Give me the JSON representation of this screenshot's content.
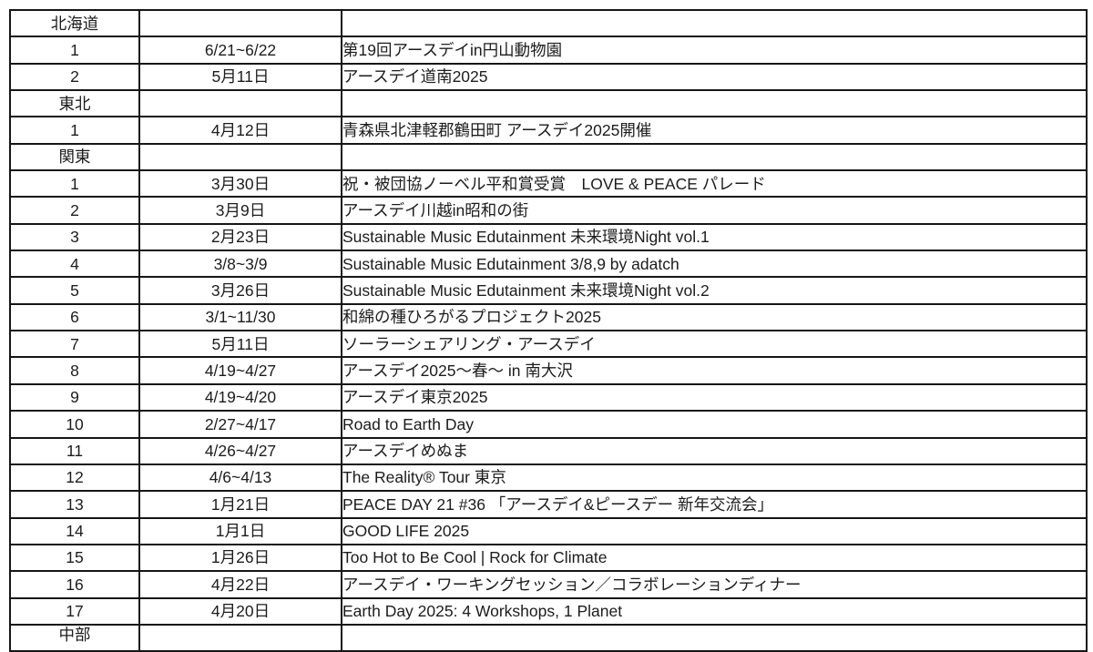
{
  "document": {
    "kind": "earth-day-2025-events-table",
    "columns": [
      "number",
      "date",
      "event_name"
    ]
  },
  "colors": {
    "background": "#ffffff",
    "border": "#161616",
    "text": "#1c1c1c"
  },
  "table": {
    "sections": [
      {
        "region": "北海道",
        "events": [
          {
            "num": "1",
            "date": "6/21~6/22",
            "title": "第19回アースデイin円山動物園"
          },
          {
            "num": "2",
            "date": "5月11日",
            "title": "アースデイ道南2025"
          }
        ]
      },
      {
        "region": "東北",
        "events": [
          {
            "num": "1",
            "date": "4月12日",
            "title": "青森県北津軽郡鶴田町 アースデイ2025開催"
          }
        ]
      },
      {
        "region": "関東",
        "events": [
          {
            "num": "1",
            "date": "3月30日",
            "title": "祝・被団協ノーベル平和賞受賞　LOVE & PEACE パレード"
          },
          {
            "num": "2",
            "date": "3月9日",
            "title": "アースデイ川越in昭和の街"
          },
          {
            "num": "3",
            "date": "2月23日",
            "title": "Sustainable Music Edutainment 未来環境Night vol.1"
          },
          {
            "num": "4",
            "date": "3/8~3/9",
            "title": "Sustainable Music Edutainment 3/8,9 by adatch"
          },
          {
            "num": "5",
            "date": "3月26日",
            "title": "Sustainable Music Edutainment 未来環境Night vol.2"
          },
          {
            "num": "6",
            "date": "3/1~11/30",
            "title": "和綿の種ひろがるプロジェクト2025"
          },
          {
            "num": "7",
            "date": "5月11日",
            "title": "ソーラーシェアリング・アースデイ"
          },
          {
            "num": "8",
            "date": "4/19~4/27",
            "title": "アースデイ2025～春～ in 南大沢"
          },
          {
            "num": "9",
            "date": "4/19~4/20",
            "title": "アースデイ東京2025"
          },
          {
            "num": "10",
            "date": "2/27~4/17",
            "title": "Road to Earth Day"
          },
          {
            "num": "11",
            "date": "4/26~4/27",
            "title": "アースデイめぬま"
          },
          {
            "num": "12",
            "date": "4/6~4/13",
            "title": "The Reality® Tour 東京"
          },
          {
            "num": "13",
            "date": "1月21日",
            "title": "PEACE DAY 21 #36 「アースデイ&ピースデー 新年交流会」"
          },
          {
            "num": "14",
            "date": "1月1日",
            "title": "GOOD LIFE 2025"
          },
          {
            "num": "15",
            "date": "1月26日",
            "title": "Too Hot to Be Cool | Rock for Climate"
          },
          {
            "num": "16",
            "date": "4月22日",
            "title": "アースデイ・ワーキングセッション／コラボレーションディナー"
          },
          {
            "num": "17",
            "date": "4月20日",
            "title": "Earth Day 2025: 4 Workshops, 1 Planet"
          }
        ]
      },
      {
        "region": "中部",
        "clipped": true,
        "events": []
      }
    ]
  }
}
